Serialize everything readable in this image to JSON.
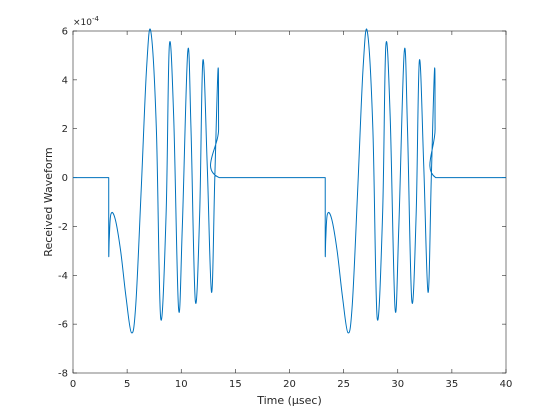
{
  "chart_data": {
    "type": "line",
    "title": "",
    "xlabel": "Time (μsec)",
    "ylabel": "Received Waveform",
    "xlim": [
      0,
      40
    ],
    "ylim": [
      -8,
      6
    ],
    "y_exponent_label": "×10",
    "y_exponent_power": "-4",
    "grid": false,
    "legend": "none",
    "xticks": [
      "0",
      "5",
      "10",
      "15",
      "20",
      "25",
      "30",
      "35",
      "40"
    ],
    "yticks": [
      "-8",
      "-6",
      "-4",
      "-2",
      "0",
      "2",
      "4",
      "6"
    ],
    "line_color": "#0072BD",
    "series": [
      {
        "values_note_x": "Time (μsec)",
        "x": [
          0,
          3.3,
          3.3,
          3.35,
          3.5,
          3.9,
          4.4,
          4.9,
          5.4,
          5.8,
          6.3,
          6.8,
          7.2,
          7.7,
          8.1,
          8.6,
          8.9,
          9.3,
          9.75,
          10.1,
          10.6,
          10.9,
          11.3,
          11.7,
          12.0,
          12.4,
          12.8,
          13.1,
          13.4,
          13.45,
          13.5,
          23.3,
          23.3,
          23.35,
          23.5,
          23.9,
          24.4,
          24.9,
          25.4,
          25.8,
          26.3,
          26.8,
          27.2,
          27.7,
          28.1,
          28.6,
          28.9,
          29.3,
          29.75,
          30.1,
          30.6,
          30.9,
          31.3,
          31.7,
          32.0,
          32.4,
          32.8,
          33.1,
          33.4,
          33.45,
          33.5,
          40
        ],
        "y": [
          0,
          0,
          -3.1,
          -2.5,
          -1.5,
          -1.7,
          -3.0,
          -4.9,
          -6.35,
          -5.2,
          -0.5,
          4.5,
          5.95,
          2.0,
          -5.75,
          -1.5,
          5.4,
          2.5,
          -5.35,
          -2.0,
          5.15,
          2.0,
          -5.05,
          -1.5,
          4.8,
          0.5,
          -4.7,
          0.0,
          4.45,
          2.0,
          0,
          0,
          -3.1,
          -2.5,
          -1.5,
          -1.7,
          -3.0,
          -4.9,
          -6.35,
          -5.2,
          -0.5,
          4.5,
          5.95,
          2.0,
          -5.75,
          -1.5,
          5.4,
          2.5,
          -5.35,
          -2.0,
          5.15,
          2.0,
          -5.05,
          -1.5,
          4.8,
          0.5,
          -4.7,
          0.0,
          4.45,
          2.0,
          0,
          0
        ]
      }
    ]
  }
}
